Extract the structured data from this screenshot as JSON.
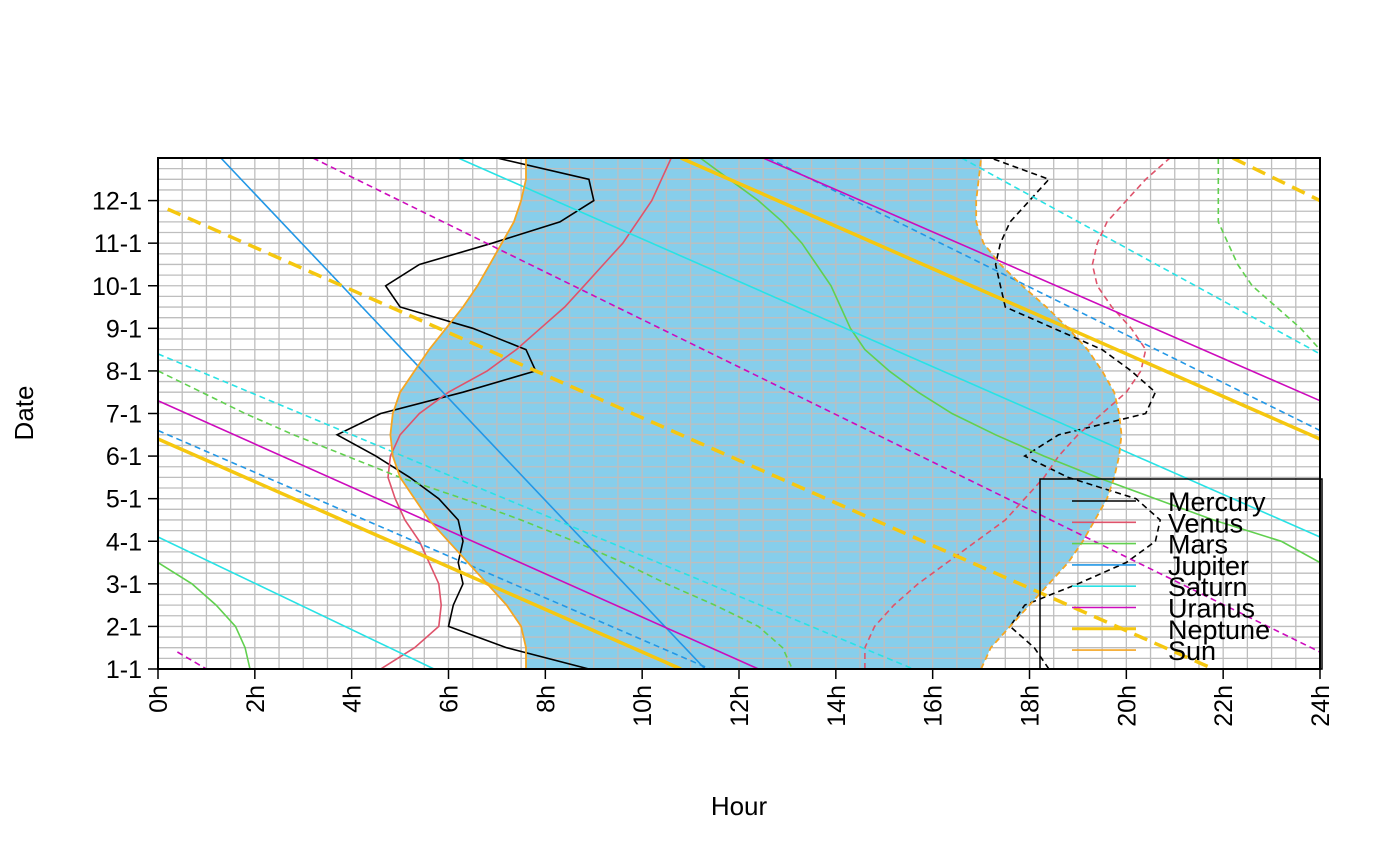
{
  "chart_data": {
    "type": "line",
    "title": "",
    "xlabel": "Hour",
    "ylabel": "Date",
    "xlim": [
      0,
      24
    ],
    "ylim": [
      1,
      13
    ],
    "x_ticks": [
      "0h",
      "2h",
      "4h",
      "6h",
      "8h",
      "10h",
      "12h",
      "14h",
      "16h",
      "18h",
      "20h",
      "22h",
      "24h"
    ],
    "y_ticks": [
      "1-1",
      "2-1",
      "3-1",
      "4-1",
      "5-1",
      "6-1",
      "7-1",
      "8-1",
      "9-1",
      "10-1",
      "11-1",
      "12-1"
    ],
    "grid": true,
    "legend_position": "bottom-right",
    "night_fill_color": "#87CEEB",
    "twilight_boundaries": {
      "name": "Sun",
      "color": "#F5A623",
      "morning": [
        [
          1,
          7.6
        ],
        [
          1.5,
          7.6
        ],
        [
          2,
          7.5
        ],
        [
          2.5,
          7.2
        ],
        [
          3,
          6.8
        ],
        [
          3.5,
          6.4
        ],
        [
          4,
          6.0
        ],
        [
          4.5,
          5.6
        ],
        [
          5,
          5.3
        ],
        [
          5.5,
          5.0
        ],
        [
          6,
          4.85
        ],
        [
          6.5,
          4.8
        ],
        [
          7,
          4.85
        ],
        [
          7.5,
          5.0
        ],
        [
          8,
          5.3
        ],
        [
          8.5,
          5.6
        ],
        [
          9,
          5.95
        ],
        [
          9.5,
          6.3
        ],
        [
          10,
          6.6
        ],
        [
          10.5,
          6.85
        ],
        [
          11,
          7.1
        ],
        [
          11.5,
          7.35
        ],
        [
          12,
          7.5
        ],
        [
          12.5,
          7.6
        ],
        [
          13,
          7.6
        ]
      ],
      "evening": [
        [
          1,
          17.0
        ],
        [
          1.5,
          17.2
        ],
        [
          2,
          17.6
        ],
        [
          2.5,
          18.0
        ],
        [
          3,
          18.4
        ],
        [
          3.5,
          18.8
        ],
        [
          4,
          19.1
        ],
        [
          4.5,
          19.35
        ],
        [
          5,
          19.6
        ],
        [
          5.5,
          19.75
        ],
        [
          6,
          19.85
        ],
        [
          6.5,
          19.9
        ],
        [
          7,
          19.85
        ],
        [
          7.5,
          19.75
        ],
        [
          8,
          19.5
        ],
        [
          8.5,
          19.2
        ],
        [
          9,
          18.8
        ],
        [
          9.5,
          18.35
        ],
        [
          10,
          17.85
        ],
        [
          10.5,
          17.4
        ],
        [
          11,
          17.05
        ],
        [
          11.5,
          16.9
        ],
        [
          12,
          16.9
        ],
        [
          12.5,
          16.95
        ],
        [
          13,
          17.0
        ]
      ]
    },
    "series": [
      {
        "name": "Mercury",
        "color": "#000000",
        "rise": [
          [
            1,
            8.9
          ],
          [
            1.5,
            7.2
          ],
          [
            2,
            6.0
          ],
          [
            2.5,
            6.1
          ],
          [
            3,
            6.3
          ],
          [
            3.5,
            6.2
          ],
          [
            4,
            6.3
          ],
          [
            4.5,
            6.2
          ],
          [
            5,
            5.8
          ],
          [
            5.5,
            5.2
          ],
          [
            6,
            4.5
          ],
          [
            6.5,
            3.7
          ],
          [
            7,
            4.6
          ],
          [
            7.5,
            6.3
          ],
          [
            8,
            7.8
          ],
          [
            8.5,
            7.6
          ],
          [
            9,
            6.5
          ],
          [
            9.5,
            5.0
          ],
          [
            10,
            4.7
          ],
          [
            10.5,
            5.4
          ],
          [
            11,
            6.9
          ],
          [
            11.5,
            8.3
          ],
          [
            12,
            9.0
          ],
          [
            12.5,
            8.9
          ],
          [
            13,
            7.0
          ]
        ],
        "set": [
          [
            1,
            18.4
          ],
          [
            1.5,
            18.1
          ],
          [
            2,
            17.6
          ],
          [
            2.5,
            17.9
          ],
          [
            3,
            19.0
          ],
          [
            3.5,
            20.0
          ],
          [
            4,
            20.6
          ],
          [
            4.5,
            20.7
          ],
          [
            5,
            20.2
          ],
          [
            5.5,
            18.8
          ],
          [
            6,
            17.9
          ],
          [
            6.5,
            18.6
          ],
          [
            7,
            20.4
          ],
          [
            7.5,
            20.6
          ],
          [
            8,
            20.1
          ],
          [
            8.5,
            19.5
          ],
          [
            9,
            18.5
          ],
          [
            9.5,
            17.5
          ],
          [
            10,
            17.4
          ],
          [
            10.5,
            17.3
          ],
          [
            11,
            17.4
          ],
          [
            11.5,
            17.6
          ],
          [
            12,
            18.0
          ],
          [
            12.5,
            18.4
          ],
          [
            13,
            17.2
          ]
        ]
      },
      {
        "name": "Venus",
        "color": "#DF536B",
        "rise": [
          [
            1,
            4.6
          ],
          [
            1.5,
            5.3
          ],
          [
            2,
            5.8
          ],
          [
            2.5,
            5.85
          ],
          [
            3,
            5.8
          ],
          [
            3.5,
            5.6
          ],
          [
            4,
            5.4
          ],
          [
            4.5,
            5.1
          ],
          [
            5,
            4.9
          ],
          [
            5.5,
            4.75
          ],
          [
            6,
            4.8
          ],
          [
            6.5,
            5.0
          ],
          [
            7,
            5.4
          ],
          [
            7.5,
            6.0
          ],
          [
            8,
            6.8
          ],
          [
            8.5,
            7.4
          ],
          [
            9,
            7.9
          ],
          [
            9.5,
            8.4
          ],
          [
            10,
            8.8
          ],
          [
            10.5,
            9.2
          ],
          [
            11,
            9.6
          ],
          [
            11.5,
            9.9
          ],
          [
            12,
            10.2
          ],
          [
            12.5,
            10.4
          ],
          [
            13,
            10.6
          ]
        ],
        "set": [
          [
            1,
            14.6
          ],
          [
            1.5,
            14.6
          ],
          [
            2,
            14.8
          ],
          [
            2.5,
            15.2
          ],
          [
            3,
            15.7
          ],
          [
            3.5,
            16.3
          ],
          [
            4,
            16.9
          ],
          [
            4.5,
            17.5
          ],
          [
            5,
            17.9
          ],
          [
            5.5,
            18.3
          ],
          [
            6,
            18.6
          ],
          [
            6.5,
            19.0
          ],
          [
            7,
            19.5
          ],
          [
            7.5,
            20.0
          ],
          [
            8,
            20.3
          ],
          [
            8.5,
            20.4
          ],
          [
            9,
            20.1
          ],
          [
            9.5,
            19.7
          ],
          [
            10,
            19.4
          ],
          [
            10.5,
            19.3
          ],
          [
            11,
            19.4
          ],
          [
            11.5,
            19.6
          ],
          [
            12,
            20.0
          ],
          [
            12.5,
            20.4
          ],
          [
            13,
            20.9
          ]
        ]
      },
      {
        "name": "Mars",
        "color": "#61D04F",
        "rise": [
          [
            13,
            11.2
          ],
          [
            12.5,
            11.8
          ],
          [
            12,
            12.4
          ],
          [
            11.5,
            12.9
          ],
          [
            11,
            13.3
          ],
          [
            10.5,
            13.6
          ],
          [
            10,
            13.9
          ],
          [
            9.5,
            14.1
          ],
          [
            9,
            14.3
          ],
          [
            8.5,
            14.6
          ],
          [
            8,
            15.1
          ],
          [
            7.5,
            15.7
          ],
          [
            7,
            16.4
          ],
          [
            6.5,
            17.3
          ],
          [
            6,
            18.3
          ],
          [
            5.5,
            19.4
          ],
          [
            5,
            20.6
          ],
          [
            4.5,
            21.8
          ],
          [
            4,
            23.2
          ],
          [
            3.5,
            24.0
          ]
        ],
        "rise2": [
          [
            3.5,
            0.0
          ],
          [
            3,
            0.7
          ],
          [
            2.5,
            1.2
          ],
          [
            2,
            1.6
          ],
          [
            1.5,
            1.8
          ],
          [
            1,
            1.9
          ]
        ],
        "set": [
          [
            8,
            0.0
          ],
          [
            7.5,
            0.9
          ],
          [
            7,
            1.8
          ],
          [
            6.5,
            2.8
          ],
          [
            6,
            3.9
          ],
          [
            5.5,
            5.0
          ],
          [
            5,
            6.3
          ],
          [
            4.5,
            7.5
          ],
          [
            4,
            8.6
          ],
          [
            3.5,
            9.6
          ],
          [
            3,
            10.5
          ],
          [
            2.5,
            11.5
          ],
          [
            2,
            12.4
          ],
          [
            1.5,
            12.9
          ],
          [
            1,
            13.1
          ]
        ],
        "set2": [
          [
            13,
            21.9
          ],
          [
            12.5,
            21.9
          ],
          [
            12,
            21.9
          ],
          [
            11.5,
            21.9
          ],
          [
            11,
            22.1
          ],
          [
            10.5,
            22.3
          ],
          [
            10,
            22.6
          ],
          [
            9.5,
            23.1
          ],
          [
            9,
            23.6
          ],
          [
            8.5,
            24.0
          ]
        ]
      },
      {
        "name": "Jupiter",
        "color": "#2297E6",
        "rise": [
          [
            13,
            1.3
          ],
          [
            1,
            11.3
          ]
        ],
        "set": [
          [
            6.6,
            0.0
          ],
          [
            1,
            11.4
          ]
        ],
        "set2": [
          [
            13,
            12.6
          ],
          [
            6.6,
            24.0
          ]
        ]
      },
      {
        "name": "Saturn",
        "color": "#28E2E5",
        "rise": [
          [
            13,
            6.2
          ],
          [
            4.1,
            24.0
          ]
        ],
        "rise2": [
          [
            4.1,
            0.0
          ],
          [
            1,
            5.7
          ]
        ],
        "set": [
          [
            8.4,
            0.0
          ],
          [
            1,
            15.6
          ]
        ],
        "set2": [
          [
            13,
            16.6
          ],
          [
            8.4,
            24.0
          ]
        ]
      },
      {
        "name": "Uranus",
        "color": "#CD0BBC",
        "rise": [
          [
            13,
            12.5
          ],
          [
            7.3,
            24.0
          ]
        ],
        "rise2": [
          [
            7.3,
            0.0
          ],
          [
            1,
            12.4
          ]
        ],
        "set": [
          [
            1.4,
            0.4
          ],
          [
            1,
            1.0
          ]
        ],
        "set2": [
          [
            13,
            3.2
          ],
          [
            1.4,
            24.0
          ]
        ]
      },
      {
        "name": "Neptune",
        "color": "#F5C710",
        "rise": [
          [
            13,
            10.8
          ],
          [
            6.4,
            24.0
          ]
        ],
        "rise2": [
          [
            6.4,
            0.0
          ],
          [
            1,
            10.8
          ]
        ],
        "set": [
          [
            11.8,
            0.2
          ],
          [
            1,
            21.8
          ]
        ],
        "set2": [
          [
            13,
            22.2
          ],
          [
            12,
            24.0
          ]
        ]
      }
    ],
    "legend": [
      "Mercury",
      "Venus",
      "Mars",
      "Jupiter",
      "Saturn",
      "Uranus",
      "Neptune",
      "Sun"
    ]
  }
}
